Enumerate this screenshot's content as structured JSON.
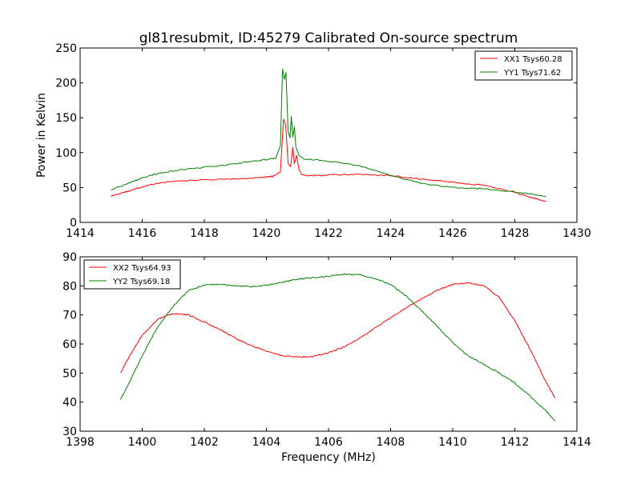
{
  "figure": {
    "title": "gl81resubmit, ID:45279 Calibrated On-source spectrum"
  },
  "chart_data": [
    {
      "type": "line",
      "ylabel": "Power in Kelvin",
      "xlabel": "",
      "xlim": [
        1414,
        1430
      ],
      "ylim": [
        0,
        250
      ],
      "xticks": [
        1414,
        1416,
        1418,
        1420,
        1422,
        1424,
        1426,
        1428,
        1430
      ],
      "yticks": [
        0,
        50,
        100,
        150,
        200,
        250
      ],
      "grid": false,
      "legend_position": "top-right",
      "series": [
        {
          "name": "XX1 Tsys60.28",
          "color": "#ff0000",
          "points": [
            [
              1415.0,
              38
            ],
            [
              1415.5,
              44
            ],
            [
              1416.0,
              51
            ],
            [
              1416.5,
              56
            ],
            [
              1417.0,
              59
            ],
            [
              1418.0,
              61
            ],
            [
              1419.0,
              62
            ],
            [
              1419.8,
              64
            ],
            [
              1420.2,
              66
            ],
            [
              1420.45,
              72
            ],
            [
              1420.55,
              148
            ],
            [
              1420.62,
              140
            ],
            [
              1420.7,
              84
            ],
            [
              1420.78,
              80
            ],
            [
              1420.85,
              108
            ],
            [
              1420.9,
              84
            ],
            [
              1420.97,
              96
            ],
            [
              1421.05,
              75
            ],
            [
              1421.15,
              68
            ],
            [
              1421.5,
              67
            ],
            [
              1422.0,
              68
            ],
            [
              1423.0,
              69
            ],
            [
              1424.0,
              67
            ],
            [
              1425.0,
              62
            ],
            [
              1426.0,
              58
            ],
            [
              1427.0,
              53
            ],
            [
              1428.0,
              43
            ],
            [
              1428.5,
              36
            ],
            [
              1429.0,
              30
            ]
          ]
        },
        {
          "name": "YY1 Tsys71.62",
          "color": "#008000",
          "points": [
            [
              1415.0,
              47
            ],
            [
              1415.5,
              55
            ],
            [
              1416.0,
              64
            ],
            [
              1416.5,
              70
            ],
            [
              1417.0,
              74
            ],
            [
              1418.0,
              79
            ],
            [
              1419.0,
              84
            ],
            [
              1419.8,
              89
            ],
            [
              1420.3,
              92
            ],
            [
              1420.45,
              110
            ],
            [
              1420.52,
              220
            ],
            [
              1420.58,
              205
            ],
            [
              1420.63,
              215
            ],
            [
              1420.7,
              130
            ],
            [
              1420.76,
              121
            ],
            [
              1420.8,
              152
            ],
            [
              1420.85,
              122
            ],
            [
              1420.9,
              137
            ],
            [
              1420.95,
              108
            ],
            [
              1421.05,
              96
            ],
            [
              1421.2,
              91
            ],
            [
              1422.0,
              88
            ],
            [
              1423.0,
              81
            ],
            [
              1424.0,
              67
            ],
            [
              1425.0,
              56
            ],
            [
              1426.0,
              50
            ],
            [
              1427.0,
              48
            ],
            [
              1428.0,
              44
            ],
            [
              1429.0,
              37
            ]
          ]
        }
      ]
    },
    {
      "type": "line",
      "xlabel": "Frequency (MHz)",
      "ylabel": "",
      "xlim": [
        1398,
        1414
      ],
      "ylim": [
        30,
        90
      ],
      "xticks": [
        1398,
        1400,
        1402,
        1404,
        1406,
        1408,
        1410,
        1412,
        1414
      ],
      "yticks": [
        30,
        40,
        50,
        60,
        70,
        80,
        90
      ],
      "grid": false,
      "legend_position": "top-left",
      "series": [
        {
          "name": "XX2 Tsys64.93",
          "color": "#ff0000",
          "points": [
            [
              1399.3,
              50
            ],
            [
              1399.6,
              56
            ],
            [
              1400.0,
              63
            ],
            [
              1400.5,
              68.5
            ],
            [
              1401.0,
              70.5
            ],
            [
              1401.5,
              70
            ],
            [
              1402.0,
              67.5
            ],
            [
              1402.5,
              65
            ],
            [
              1403.0,
              62
            ],
            [
              1403.5,
              59.5
            ],
            [
              1404.0,
              57.5
            ],
            [
              1404.5,
              56
            ],
            [
              1405.0,
              55.5
            ],
            [
              1405.5,
              55.7
            ],
            [
              1406.0,
              57
            ],
            [
              1406.5,
              59
            ],
            [
              1407.0,
              62
            ],
            [
              1407.5,
              65.5
            ],
            [
              1408.0,
              69
            ],
            [
              1408.5,
              72.5
            ],
            [
              1409.0,
              75.5
            ],
            [
              1409.5,
              78.5
            ],
            [
              1410.0,
              80.5
            ],
            [
              1410.5,
              81
            ],
            [
              1411.0,
              80
            ],
            [
              1411.5,
              76
            ],
            [
              1412.0,
              68
            ],
            [
              1412.5,
              58
            ],
            [
              1413.0,
              47
            ],
            [
              1413.3,
              41.5
            ]
          ]
        },
        {
          "name": "YY2 Tsys69.18",
          "color": "#008000",
          "points": [
            [
              1399.3,
              41
            ],
            [
              1399.6,
              47
            ],
            [
              1400.0,
              56
            ],
            [
              1400.5,
              66
            ],
            [
              1401.0,
              73
            ],
            [
              1401.5,
              78.5
            ],
            [
              1402.0,
              80.3
            ],
            [
              1402.5,
              80.5
            ],
            [
              1403.0,
              80
            ],
            [
              1403.5,
              79.8
            ],
            [
              1404.0,
              80.2
            ],
            [
              1404.5,
              81.2
            ],
            [
              1405.0,
              82.3
            ],
            [
              1405.5,
              82.8
            ],
            [
              1406.0,
              83.3
            ],
            [
              1406.5,
              84
            ],
            [
              1407.0,
              83.8
            ],
            [
              1407.5,
              82.5
            ],
            [
              1408.0,
              80.5
            ],
            [
              1408.5,
              76.5
            ],
            [
              1409.0,
              71.5
            ],
            [
              1409.5,
              66
            ],
            [
              1410.0,
              60.5
            ],
            [
              1410.5,
              56
            ],
            [
              1411.0,
              53
            ],
            [
              1411.5,
              50
            ],
            [
              1412.0,
              46.5
            ],
            [
              1412.5,
              42
            ],
            [
              1413.0,
              37
            ],
            [
              1413.3,
              33.5
            ]
          ]
        }
      ]
    }
  ]
}
